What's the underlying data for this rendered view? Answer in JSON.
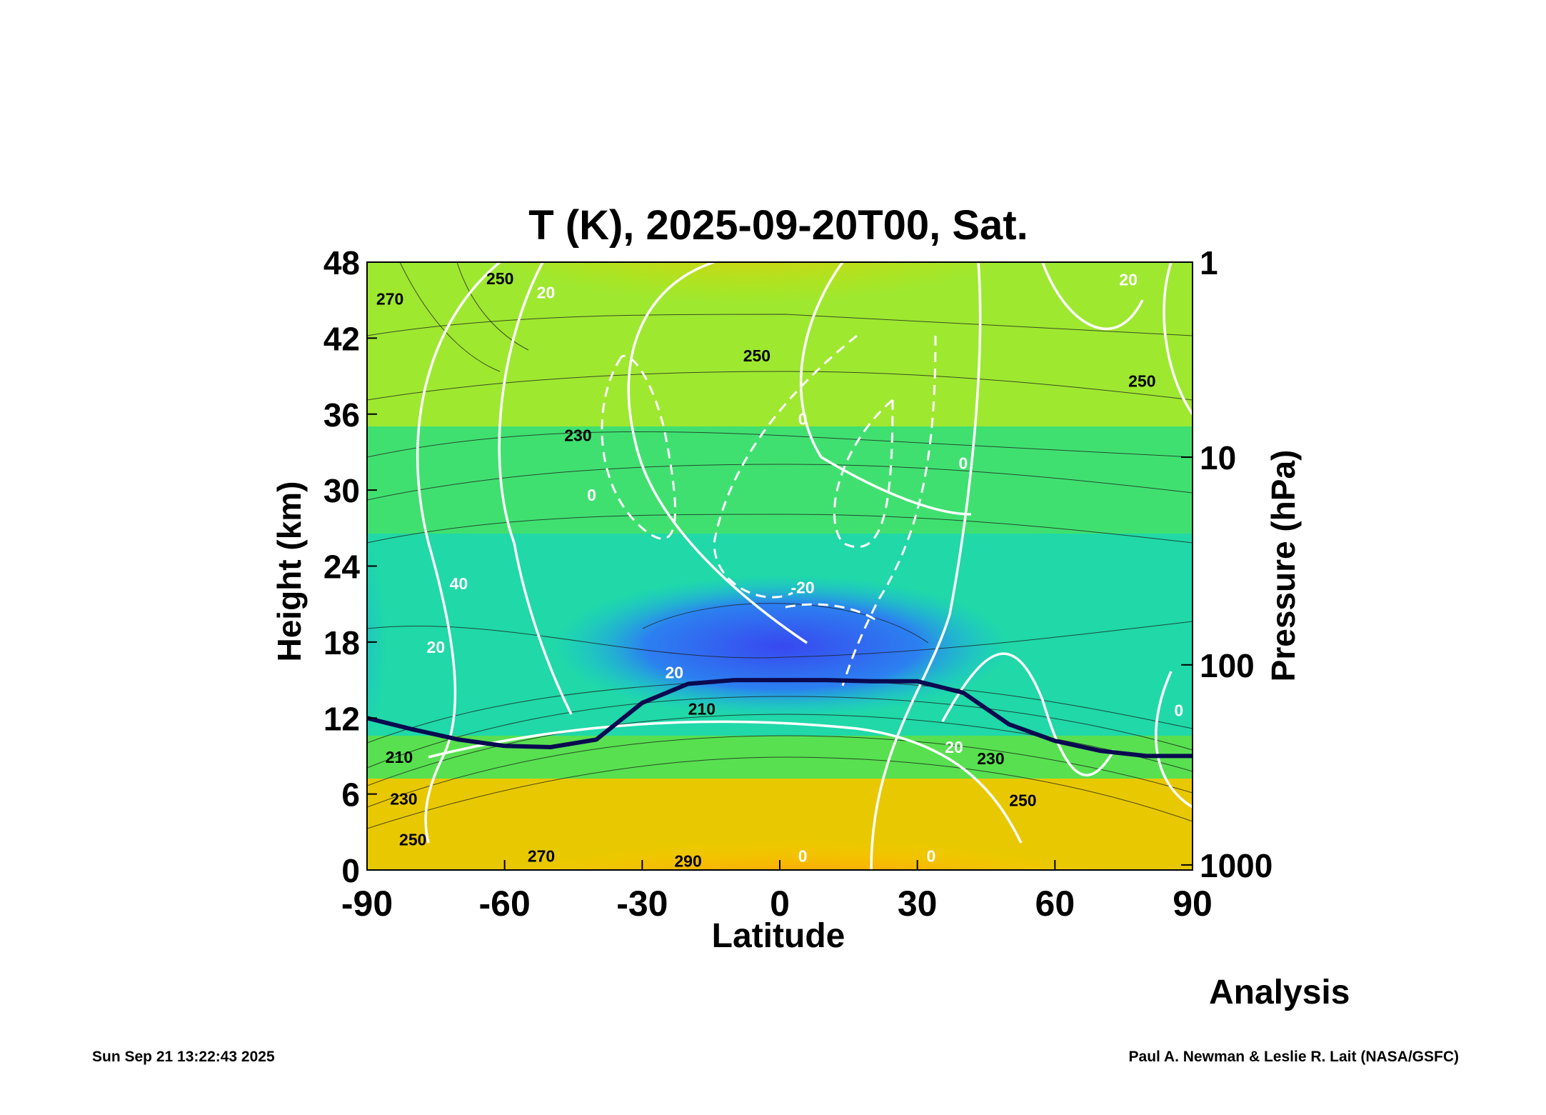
{
  "figure": {
    "title": "T (K), 2025-09-20T00, Sat.",
    "xlabel": "Latitude",
    "ylabel_left": "Height (km)",
    "ylabel_right": "Pressure (hPa)",
    "tag": "Analysis",
    "timestamp": "Sun Sep 21 13:22:43 2025",
    "credit": "Paul A. Newman & Leslie R. Lait (NASA/GSFC)"
  },
  "chart_data": {
    "type": "heatmap",
    "title": "T (K), 2025-09-20T00, Sat.",
    "xlabel": "Latitude",
    "ylabel": "Height (km)",
    "ylabel_right": "Pressure (hPa)",
    "xlim": [
      -90,
      90
    ],
    "ylim": [
      0,
      48
    ],
    "x_ticks": [
      "-90",
      "-60",
      "-30",
      "0",
      "30",
      "60",
      "90"
    ],
    "y_ticks": [
      "0",
      "6",
      "12",
      "18",
      "24",
      "30",
      "36",
      "42",
      "48"
    ],
    "pressure_ticks": [
      "1",
      "10",
      "100",
      "1000"
    ],
    "pressure_tick_heights_km": [
      48,
      32.6,
      16.2,
      0.4
    ],
    "fill_variable": "T (K)",
    "temperature_labels": [
      {
        "text": "270",
        "lat": -85,
        "z": 45
      },
      {
        "text": "250",
        "lat": -61,
        "z": 46.6
      },
      {
        "text": "250",
        "lat": -5,
        "z": 40.5
      },
      {
        "text": "250",
        "lat": 79,
        "z": 38.5
      },
      {
        "text": "230",
        "lat": -44,
        "z": 34.2
      },
      {
        "text": "210",
        "lat": -17,
        "z": 12.6
      },
      {
        "text": "210",
        "lat": -83,
        "z": 8.8
      },
      {
        "text": "230",
        "lat": -82,
        "z": 5.5
      },
      {
        "text": "230",
        "lat": 46,
        "z": 8.7
      },
      {
        "text": "250",
        "lat": -80,
        "z": 2.3
      },
      {
        "text": "250",
        "lat": 53,
        "z": 5.4
      },
      {
        "text": "270",
        "lat": -52,
        "z": 1.0
      },
      {
        "text": "290",
        "lat": -20,
        "z": 0.6
      }
    ],
    "wind_labels": [
      {
        "text": "20",
        "lat": -51,
        "z": 45.5
      },
      {
        "text": "20",
        "lat": 76,
        "z": 46.5
      },
      {
        "text": "0",
        "lat": 5,
        "z": 35.5
      },
      {
        "text": "0",
        "lat": -41,
        "z": 29.5
      },
      {
        "text": "0",
        "lat": 40,
        "z": 32
      },
      {
        "text": "40",
        "lat": -70,
        "z": 22.5
      },
      {
        "text": "20",
        "lat": -75,
        "z": 17.5
      },
      {
        "text": "-20",
        "lat": 5,
        "z": 22.2
      },
      {
        "text": "20",
        "lat": -23,
        "z": 15.5
      },
      {
        "text": "20",
        "lat": 38,
        "z": 9.6
      },
      {
        "text": "0",
        "lat": 5,
        "z": 1.0
      },
      {
        "text": "0",
        "lat": 33,
        "z": 1.0
      },
      {
        "text": "0",
        "lat": 87,
        "z": 12.5
      }
    ],
    "tropopause": {
      "lat": [
        -90,
        -80,
        -70,
        -60,
        -50,
        -40,
        -30,
        -20,
        -10,
        0,
        10,
        20,
        30,
        40,
        50,
        60,
        70,
        80,
        90
      ],
      "z": [
        12,
        11.1,
        10.3,
        9.8,
        9.7,
        10.3,
        13.2,
        14.7,
        15.0,
        15.0,
        15.0,
        14.9,
        14.9,
        14.0,
        11.5,
        10.2,
        9.4,
        9.0,
        9.0
      ]
    }
  }
}
